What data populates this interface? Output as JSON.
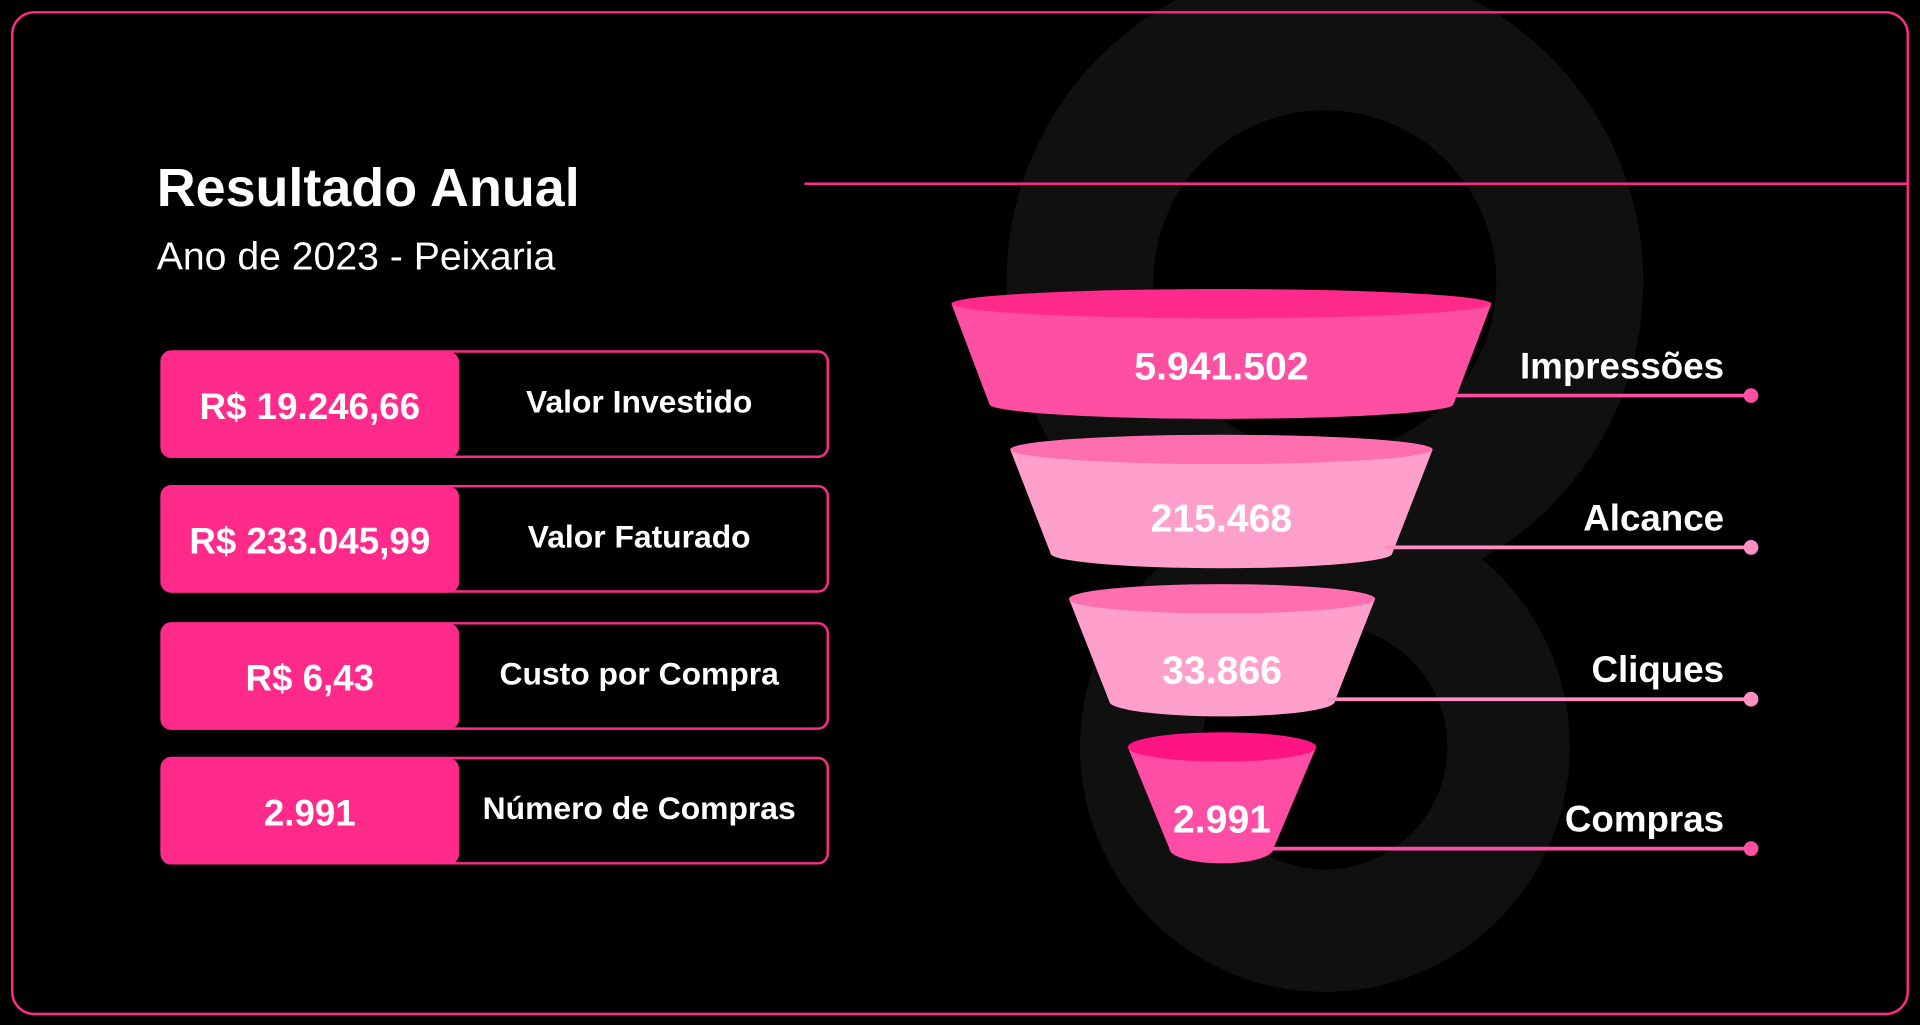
{
  "header": {
    "title": "Resultado Anual",
    "subtitle": "Ano de 2023 - Peixaria"
  },
  "kpis": [
    {
      "value": "R$ 19.246,66",
      "label": "Valor Investido"
    },
    {
      "value": "R$ 233.045,99",
      "label": "Valor Faturado"
    },
    {
      "value": "R$ 6,43",
      "label": "Custo por Compra"
    },
    {
      "value": "2.991",
      "label": "Número de Compras"
    }
  ],
  "funnel": [
    {
      "value": "5.941.502",
      "label": "Impressões",
      "body_color": "#ff4fa3",
      "top_color": "#ff2a8a",
      "line_color": "#ff4fa3"
    },
    {
      "value": "215.468",
      "label": "Alcance",
      "body_color": "#ff9fcb",
      "top_color": "#ff6fb0",
      "line_color": "#ff8fc2"
    },
    {
      "value": "33.866",
      "label": "Cliques",
      "body_color": "#ff9fcb",
      "top_color": "#ff6fb0",
      "line_color": "#ff8fc2"
    },
    {
      "value": "2.991",
      "label": "Compras",
      "body_color": "#ff4da6",
      "top_color": "#ff1483",
      "line_color": "#ff4fa3"
    }
  ],
  "colors": {
    "accent": "#ff2a8a",
    "background": "#000000"
  }
}
